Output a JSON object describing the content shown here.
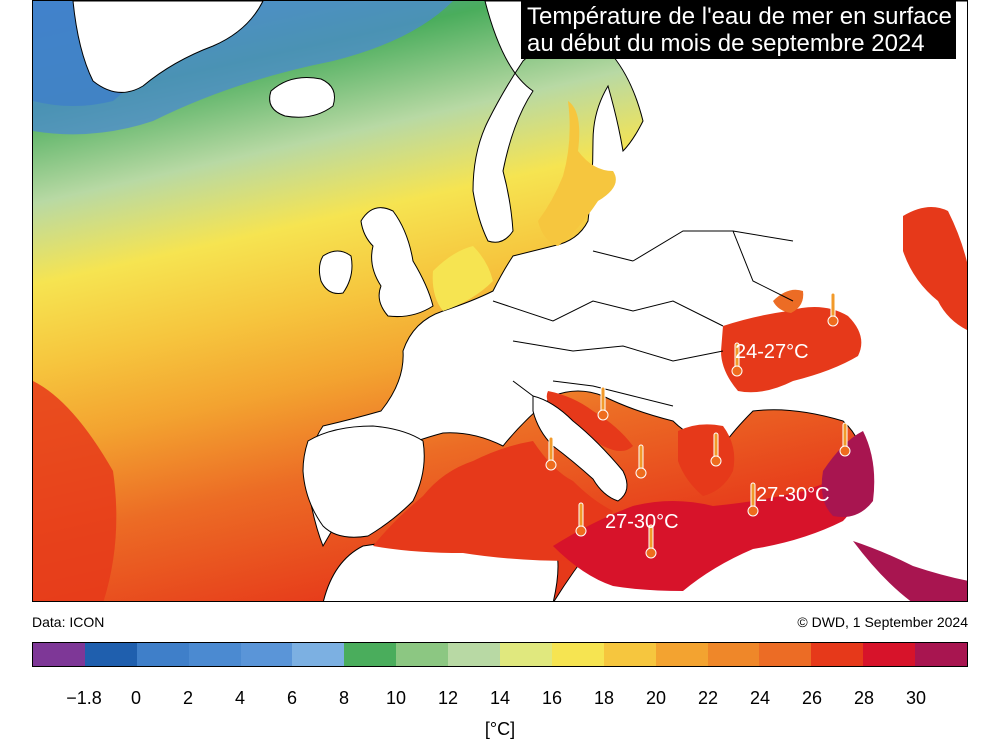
{
  "title": {
    "line1": "Température de l'eau de mer en surface",
    "line2": "au début du mois de septembre 2024"
  },
  "annotations": [
    {
      "name": "black-sea",
      "text": "24-27°C"
    },
    {
      "name": "central-mediterranean",
      "text": "27-30°C"
    },
    {
      "name": "eastern-mediterranean",
      "text": "27-30°C"
    }
  ],
  "source_left": "Data: ICON",
  "source_right": "© DWD, 1 September 2024",
  "legend": {
    "unit": "[°C]",
    "colors": [
      "#7e3797",
      "#1f5fae",
      "#3f7fc9",
      "#4b8ad1",
      "#5a95d8",
      "#7cb0e2",
      "#4aad5c",
      "#8cc782",
      "#b8d9a4",
      "#e0e87e",
      "#f6e451",
      "#f6c63e",
      "#f3a330",
      "#ef8729",
      "#ec6c25",
      "#e6391a",
      "#d7132a",
      "#a81550"
    ],
    "ticks": [
      "−1.8",
      "0",
      "2",
      "4",
      "6",
      "8",
      "10",
      "12",
      "14",
      "16",
      "18",
      "20",
      "22",
      "24",
      "26",
      "28",
      "30"
    ]
  },
  "map_colors": {
    "land": "#ffffff",
    "landmass": "#ffffff",
    "borders": "#000000",
    "thermometer": "#f29a2a",
    "thermometer_bulb": "#ee6c1e"
  }
}
